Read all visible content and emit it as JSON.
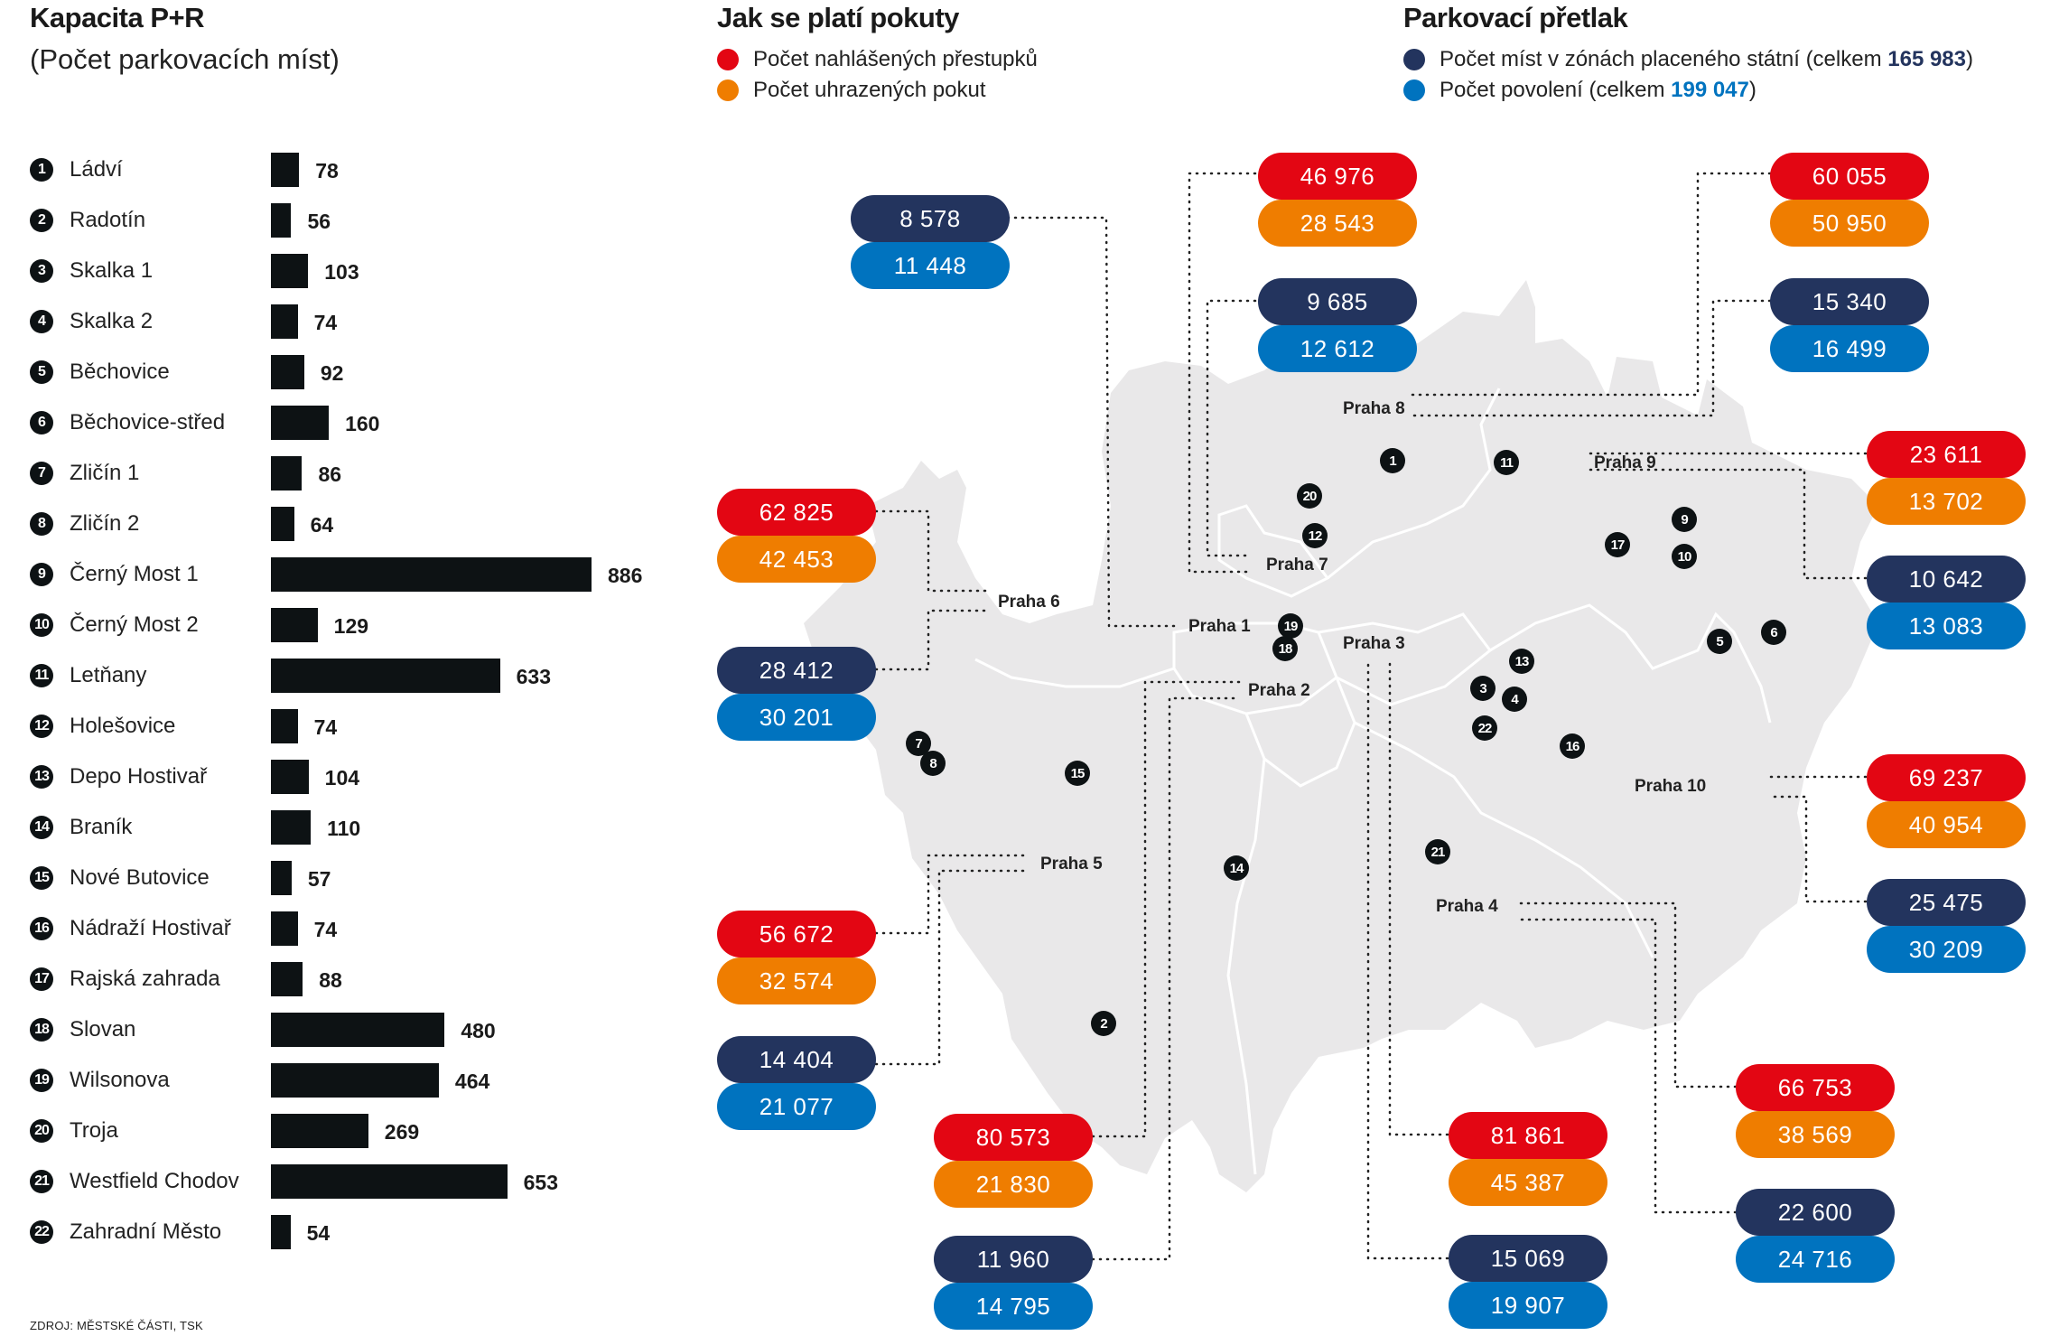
{
  "left_panel": {
    "title": "Kapacita P+R",
    "subtitle": "(Počet parkovacích míst)",
    "source": "ZDROJ: MĚSTSKÉ ČÁSTI, TSK"
  },
  "fines_legend": {
    "title": "Jak se platí pokuty",
    "items": [
      {
        "label": "Počet nahlášených přestupků",
        "color": "#e30613"
      },
      {
        "label": "Počet uhrazených pokut",
        "color": "#ef7d00"
      }
    ]
  },
  "pressure_legend": {
    "title": "Parkovací přetlak",
    "items": [
      {
        "prefix": "Počet míst v zónách placeného státní (celkem ",
        "total": "165 983",
        "suffix": ")",
        "color": "#23345e"
      },
      {
        "prefix": "Počet povolení (celkem ",
        "total": "199 047",
        "suffix": ")",
        "color": "#0073bf"
      }
    ]
  },
  "colors": {
    "reported_offences": "#e30613",
    "paid_fines": "#ef7d00",
    "paid_zone_spaces": "#23345e",
    "permits": "#0073bf",
    "bar": "#0d1214",
    "map_fill": "#e9e8e9"
  },
  "chart_data": [
    {
      "type": "bar",
      "orientation": "horizontal",
      "title": "Kapacita P+R",
      "subtitle": "(Počet parkovacích míst)",
      "xlabel": "",
      "ylabel": "",
      "xlim": [
        0,
        886
      ],
      "categories": [
        "Ládví",
        "Radotín",
        "Skalka 1",
        "Skalka 2",
        "Běchovice",
        "Běchovice-střed",
        "Zličín 1",
        "Zličín 2",
        "Černý Most 1",
        "Černý Most 2",
        "Letňany",
        "Holešovice",
        "Depo Hostivař",
        "Braník",
        "Nové Butovice",
        "Nádraží Hostivař",
        "Rajská zahrada",
        "Slovan",
        "Wilsonova",
        "Troja",
        "Westfield Chodov",
        "Zahradní Město"
      ],
      "ids": [
        1,
        2,
        3,
        4,
        5,
        6,
        7,
        8,
        9,
        10,
        11,
        12,
        13,
        14,
        15,
        16,
        17,
        18,
        19,
        20,
        21,
        22
      ],
      "values": [
        78,
        56,
        103,
        74,
        92,
        160,
        86,
        64,
        886,
        129,
        633,
        74,
        104,
        110,
        57,
        74,
        88,
        480,
        464,
        269,
        653,
        54
      ]
    },
    {
      "type": "table",
      "title": "Jak se platí pokuty / Parkovací přetlak",
      "columns": [
        "district",
        "reported_offences",
        "paid_fines",
        "paid_zone_spaces",
        "permits"
      ],
      "rows": [
        {
          "district": "Praha 1",
          "paid_zone_spaces": "8 578",
          "permits": "11 448"
        },
        {
          "district": "Praha 2",
          "reported_offences": "80 573",
          "paid_fines": "21 830",
          "paid_zone_spaces": "11 960",
          "permits": "14 795"
        },
        {
          "district": "Praha 3",
          "reported_offences": "81 861",
          "paid_fines": "45 387",
          "paid_zone_spaces": "15 069",
          "permits": "19 907"
        },
        {
          "district": "Praha 4",
          "reported_offences": "66 753",
          "paid_fines": "38 569",
          "paid_zone_spaces": "22 600",
          "permits": "24 716"
        },
        {
          "district": "Praha 5",
          "reported_offences": "56 672",
          "paid_fines": "32 574",
          "paid_zone_spaces": "14 404",
          "permits": "21 077"
        },
        {
          "district": "Praha 6",
          "reported_offences": "62 825",
          "paid_fines": "42 453",
          "paid_zone_spaces": "28 412",
          "permits": "30 201"
        },
        {
          "district": "Praha 7",
          "reported_offences": "46 976",
          "paid_fines": "28 543",
          "paid_zone_spaces": "9 685",
          "permits": "12 612"
        },
        {
          "district": "Praha 8",
          "reported_offences": "60 055",
          "paid_fines": "50 950",
          "paid_zone_spaces": "15 340",
          "permits": "16 499"
        },
        {
          "district": "Praha 9",
          "reported_offences": "23 611",
          "paid_fines": "13 702",
          "paid_zone_spaces": "10 642",
          "permits": "13 083"
        },
        {
          "district": "Praha 10",
          "reported_offences": "69 237",
          "paid_fines": "40 954",
          "paid_zone_spaces": "25 475",
          "permits": "30 209"
        }
      ]
    }
  ],
  "map": {
    "districts": [
      "Praha 1",
      "Praha 2",
      "Praha 3",
      "Praha 4",
      "Praha 5",
      "Praha 6",
      "Praha 7",
      "Praha 8",
      "Praha 9",
      "Praha 10"
    ],
    "markers": [
      "1",
      "2",
      "3",
      "4",
      "5",
      "6",
      "7",
      "8",
      "9",
      "10",
      "11",
      "12",
      "13",
      "14",
      "15",
      "16",
      "17",
      "18",
      "19",
      "20",
      "21",
      "22"
    ],
    "pills": {
      "p1_navy": "8 578",
      "p1_blue": "11 448",
      "p7_red": "46 976",
      "p7_orange": "28 543",
      "p7_navy": "9 685",
      "p7_blue": "12 612",
      "p8_red": "60 055",
      "p8_orange": "50 950",
      "p8_navy": "15 340",
      "p8_blue": "16 499",
      "p9_red": "23 611",
      "p9_orange": "13 702",
      "p9_navy": "10 642",
      "p9_blue": "13 083",
      "p6_red": "62 825",
      "p6_orange": "42 453",
      "p6_navy": "28 412",
      "p6_blue": "30 201",
      "p10_red": "69 237",
      "p10_orange": "40 954",
      "p10_navy": "25 475",
      "p10_blue": "30 209",
      "p5_red": "56 672",
      "p5_orange": "32 574",
      "p5_navy": "14 404",
      "p5_blue": "21 077",
      "p2_red": "80 573",
      "p2_orange": "21 830",
      "p2_navy": "11 960",
      "p2_blue": "14 795",
      "p3_red": "81 861",
      "p3_orange": "45 387",
      "p3_navy": "15 069",
      "p3_blue": "19 907",
      "p4_red": "66 753",
      "p4_orange": "38 569",
      "p4_navy": "22 600",
      "p4_blue": "24 716"
    }
  }
}
